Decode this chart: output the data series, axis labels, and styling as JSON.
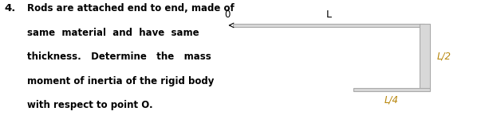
{
  "text_left": "4.",
  "problem_text_lines": [
    "Rods are attached end to end, made of",
    "same  material  and  have  same",
    "thickness.   Determine   the   mass",
    "moment of inertia of the rigid body",
    "with respect to point O."
  ],
  "label_O": "0",
  "label_L": "L",
  "label_L2": "L/2",
  "label_L4": "L/4",
  "rod_color": "#d8d8d8",
  "rod_edge_color": "#aaaaaa",
  "text_color": "#000000",
  "label_color": "#b8860b",
  "bg_color": "#ffffff",
  "fig_width": 6.08,
  "fig_height": 1.45,
  "dpi": 100
}
